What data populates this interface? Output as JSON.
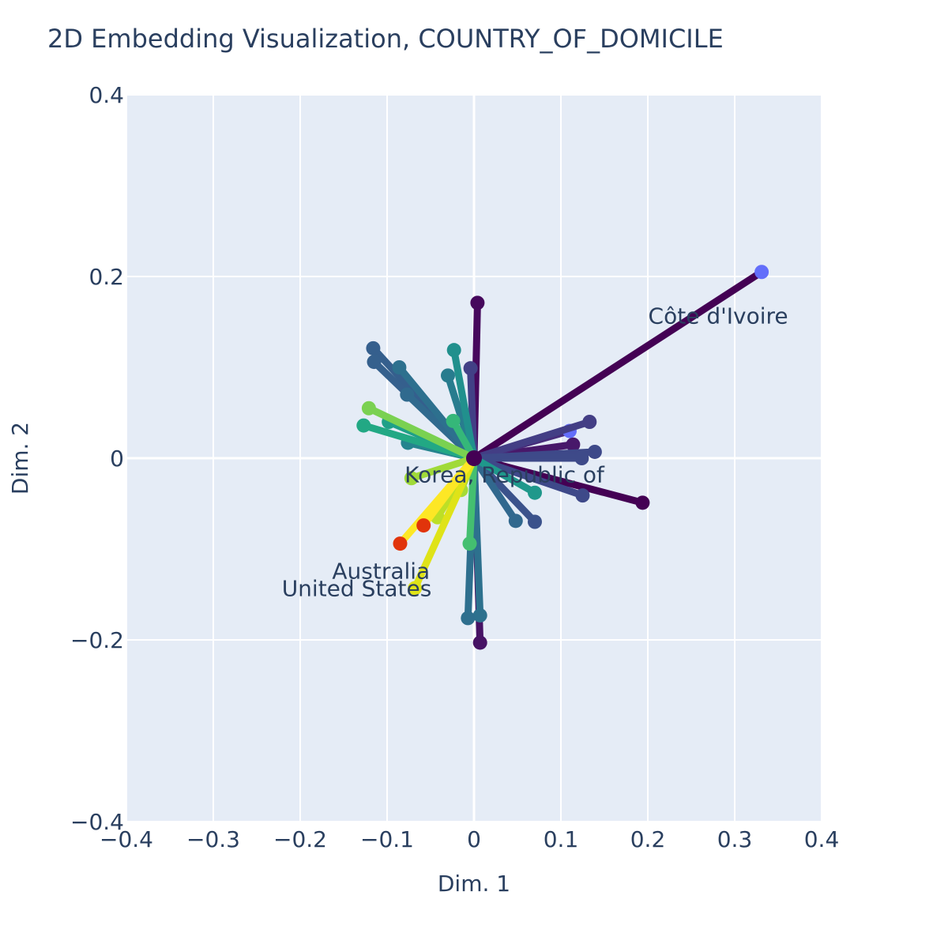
{
  "chart_data": {
    "type": "scatter",
    "title": "2D Embedding Visualization, COUNTRY_OF_DOMICILE",
    "xlabel": "Dim. 1",
    "ylabel": "Dim. 2",
    "xlim": [
      -0.4,
      0.4
    ],
    "ylim": [
      -0.4,
      0.4
    ],
    "xticks": [
      -0.4,
      -0.3,
      -0.2,
      -0.1,
      0,
      0.1,
      0.2,
      0.3,
      0.4
    ],
    "yticks": [
      -0.4,
      -0.2,
      0,
      0.2,
      0.4
    ],
    "xtick_labels": [
      "−0.4",
      "−0.3",
      "−0.2",
      "−0.1",
      "0",
      "0.1",
      "0.2",
      "0.3",
      "0.4"
    ],
    "ytick_labels": [
      "−0.4",
      "−0.2",
      "0",
      "0.2",
      "0.4"
    ],
    "grid": true,
    "origin": [
      0,
      0
    ],
    "vectors": [
      {
        "x": 0.331,
        "y": 0.205,
        "color": "#440154",
        "marker": "#636efa",
        "label": "Côte d'Ivoire"
      },
      {
        "x": 0.194,
        "y": -0.049,
        "color": "#440154"
      },
      {
        "x": 0.004,
        "y": 0.171,
        "color": "#46085c"
      },
      {
        "x": 0.007,
        "y": -0.203,
        "color": "#471365"
      },
      {
        "x": 0.114,
        "y": 0.015,
        "color": "#48186a"
      },
      {
        "x": 0.11,
        "y": 0.03,
        "color": "#472d7b",
        "marker": "#636efa"
      },
      {
        "x": 0.133,
        "y": 0.04,
        "color": "#433e85"
      },
      {
        "x": 0.139,
        "y": 0.007,
        "color": "#3e4989"
      },
      {
        "x": 0.124,
        "y": 0.0,
        "color": "#3e4a89"
      },
      {
        "x": 0.125,
        "y": -0.041,
        "color": "#3e4989"
      },
      {
        "x": -0.004,
        "y": 0.099,
        "color": "#424086"
      },
      {
        "x": 0.07,
        "y": -0.07,
        "color": "#3b528b"
      },
      {
        "x": -0.116,
        "y": 0.121,
        "color": "#355f8d"
      },
      {
        "x": -0.115,
        "y": 0.106,
        "color": "#35608d"
      },
      {
        "x": 0.048,
        "y": -0.069,
        "color": "#31688e"
      },
      {
        "x": -0.077,
        "y": 0.07,
        "color": "#306a8e"
      },
      {
        "x": -0.086,
        "y": 0.1,
        "color": "#2d708e"
      },
      {
        "x": 0.007,
        "y": -0.173,
        "color": "#2d718e"
      },
      {
        "x": -0.007,
        "y": -0.176,
        "color": "#2e6f8e"
      },
      {
        "x": -0.03,
        "y": 0.091,
        "color": "#287c8e"
      },
      {
        "x": -0.076,
        "y": 0.017,
        "color": "#25848e"
      },
      {
        "x": -0.023,
        "y": 0.119,
        "color": "#21908d"
      },
      {
        "x": 0.07,
        "y": -0.038,
        "color": "#1f988b"
      },
      {
        "x": -0.098,
        "y": 0.04,
        "color": "#1fa088"
      },
      {
        "x": -0.127,
        "y": 0.036,
        "color": "#22a884"
      },
      {
        "x": -0.024,
        "y": 0.041,
        "color": "#35b779"
      },
      {
        "x": -0.005,
        "y": -0.094,
        "color": "#44bf70"
      },
      {
        "x": -0.121,
        "y": 0.055,
        "color": "#7ad151"
      },
      {
        "x": -0.072,
        "y": -0.022,
        "color": "#a0da39",
        "label": "Korea, Republic of"
      },
      {
        "x": -0.015,
        "y": -0.035,
        "color": "#a5db36"
      },
      {
        "x": -0.042,
        "y": -0.065,
        "color": "#bddf26"
      },
      {
        "x": -0.068,
        "y": -0.143,
        "color": "#dfe318",
        "label": "United States"
      },
      {
        "x": -0.085,
        "y": -0.094,
        "color": "#fde725",
        "marker": "#e1340b",
        "label": "Australia"
      },
      {
        "x": -0.058,
        "y": -0.074,
        "color": "#fde725",
        "marker": "#e1340b"
      }
    ],
    "annotations": [
      {
        "text": "Côte d'Ivoire",
        "x": 0.281,
        "y": 0.157
      },
      {
        "text": "Korea, Republic of",
        "x": 0.035,
        "y": -0.018
      },
      {
        "text": "Australia",
        "x": -0.107,
        "y": -0.124
      },
      {
        "text": "United States",
        "x": -0.135,
        "y": -0.143
      }
    ]
  }
}
